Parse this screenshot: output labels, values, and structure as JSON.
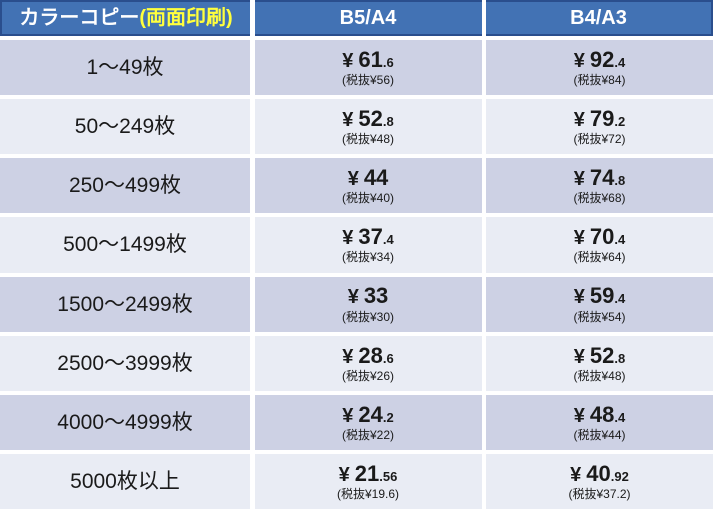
{
  "currency": "¥",
  "colors": {
    "header_bg": "#4272b4",
    "header_border": "#2a4e8d",
    "header_text": "#ffffff",
    "header_accent": "#ffff3d",
    "row_dark": "#cdd1e4",
    "row_light": "#e9ecf4",
    "text": "#1a1a1a",
    "divider": "#ffffff"
  },
  "header": {
    "product_white": "カラーコピー",
    "product_yellow": "(両面印刷)",
    "col_b5a4": "B5/A4",
    "col_b4a3": "B4/A3"
  },
  "rows": [
    {
      "qty": "1〜49枚",
      "b5a4": {
        "int": "61",
        "frac": ".6",
        "tax": "(税抜¥56)"
      },
      "b4a3": {
        "int": "92",
        "frac": ".4",
        "tax": "(税抜¥84)"
      }
    },
    {
      "qty": "50〜249枚",
      "b5a4": {
        "int": "52",
        "frac": ".8",
        "tax": "(税抜¥48)"
      },
      "b4a3": {
        "int": "79",
        "frac": ".2",
        "tax": "(税抜¥72)"
      }
    },
    {
      "qty": "250〜499枚",
      "b5a4": {
        "int": "44",
        "frac": "",
        "tax": "(税抜¥40)"
      },
      "b4a3": {
        "int": "74",
        "frac": ".8",
        "tax": "(税抜¥68)"
      }
    },
    {
      "qty": "500〜1499枚",
      "b5a4": {
        "int": "37",
        "frac": ".4",
        "tax": "(税抜¥34)"
      },
      "b4a3": {
        "int": "70",
        "frac": ".4",
        "tax": "(税抜¥64)"
      }
    },
    {
      "qty": "1500〜2499枚",
      "b5a4": {
        "int": "33",
        "frac": "",
        "tax": "(税抜¥30)"
      },
      "b4a3": {
        "int": "59",
        "frac": ".4",
        "tax": "(税抜¥54)"
      }
    },
    {
      "qty": "2500〜3999枚",
      "b5a4": {
        "int": "28",
        "frac": ".6",
        "tax": "(税抜¥26)"
      },
      "b4a3": {
        "int": "52",
        "frac": ".8",
        "tax": "(税抜¥48)"
      }
    },
    {
      "qty": "4000〜4999枚",
      "b5a4": {
        "int": "24",
        "frac": ".2",
        "tax": "(税抜¥22)"
      },
      "b4a3": {
        "int": "48",
        "frac": ".4",
        "tax": "(税抜¥44)"
      }
    },
    {
      "qty": "5000枚以上",
      "b5a4": {
        "int": "21",
        "frac": ".56",
        "tax": "(税抜¥19.6)"
      },
      "b4a3": {
        "int": "40",
        "frac": ".92",
        "tax": "(税抜¥37.2)"
      }
    }
  ],
  "chart_data": {
    "type": "table",
    "title": "カラーコピー(両面印刷) 価格表",
    "columns": [
      "カラーコピー(両面印刷)",
      "B5/A4",
      "B4/A3"
    ],
    "rows": [
      {
        "qty": "1〜49枚",
        "b5a4_incl_tax": 61.6,
        "b5a4_excl_tax": 56,
        "b4a3_incl_tax": 92.4,
        "b4a3_excl_tax": 84
      },
      {
        "qty": "50〜249枚",
        "b5a4_incl_tax": 52.8,
        "b5a4_excl_tax": 48,
        "b4a3_incl_tax": 79.2,
        "b4a3_excl_tax": 72
      },
      {
        "qty": "250〜499枚",
        "b5a4_incl_tax": 44,
        "b5a4_excl_tax": 40,
        "b4a3_incl_tax": 74.8,
        "b4a3_excl_tax": 68
      },
      {
        "qty": "500〜1499枚",
        "b5a4_incl_tax": 37.4,
        "b5a4_excl_tax": 34,
        "b4a3_incl_tax": 70.4,
        "b4a3_excl_tax": 64
      },
      {
        "qty": "1500〜2499枚",
        "b5a4_incl_tax": 33,
        "b5a4_excl_tax": 30,
        "b4a3_incl_tax": 59.4,
        "b4a3_excl_tax": 54
      },
      {
        "qty": "2500〜3999枚",
        "b5a4_incl_tax": 28.6,
        "b5a4_excl_tax": 26,
        "b4a3_incl_tax": 52.8,
        "b4a3_excl_tax": 48
      },
      {
        "qty": "4000〜4999枚",
        "b5a4_incl_tax": 24.2,
        "b5a4_excl_tax": 22,
        "b4a3_incl_tax": 48.4,
        "b4a3_excl_tax": 44
      },
      {
        "qty": "5000枚以上",
        "b5a4_incl_tax": 21.56,
        "b5a4_excl_tax": 19.6,
        "b4a3_incl_tax": 40.92,
        "b4a3_excl_tax": 37.2
      }
    ]
  }
}
